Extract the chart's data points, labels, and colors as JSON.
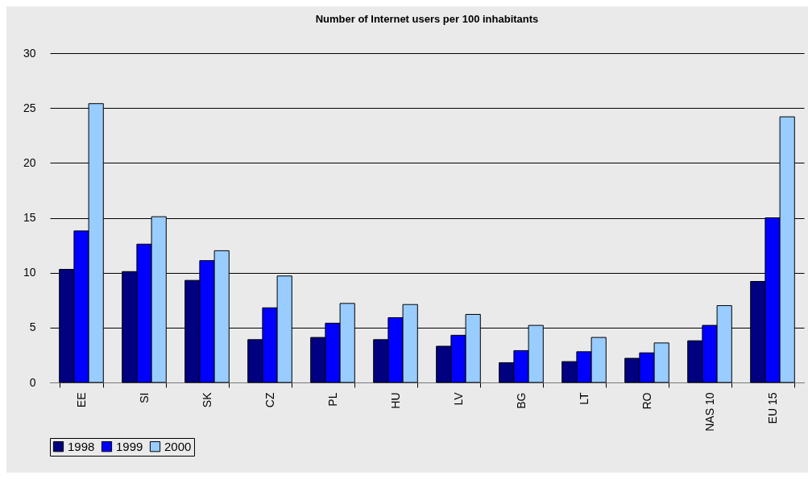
{
  "chart_data": {
    "type": "bar",
    "title": "Number of Internet users per 100 inhabitants",
    "categories": [
      "EE",
      "SI",
      "SK",
      "CZ",
      "PL",
      "HU",
      "LV",
      "BG",
      "LT",
      "RO",
      "NAS 10",
      "EU 15"
    ],
    "series": [
      {
        "name": "1998",
        "color": "#000080",
        "values": [
          10.3,
          10.1,
          9.3,
          3.9,
          4.1,
          3.9,
          3.3,
          1.8,
          1.9,
          2.2,
          3.8,
          9.2
        ]
      },
      {
        "name": "1999",
        "color": "#0000ff",
        "values": [
          13.8,
          12.6,
          11.1,
          6.8,
          5.4,
          5.9,
          4.3,
          2.9,
          2.8,
          2.7,
          5.2,
          15.0
        ]
      },
      {
        "name": "2000",
        "color": "#99ccff",
        "values": [
          25.4,
          15.1,
          12.0,
          9.7,
          7.2,
          7.1,
          6.2,
          5.2,
          4.1,
          3.6,
          7.0,
          24.2
        ]
      }
    ],
    "ylim": [
      0,
      30
    ],
    "yticks": [
      0,
      5,
      10,
      15,
      20,
      25,
      30
    ],
    "grid": "y",
    "legend": "bottom"
  }
}
